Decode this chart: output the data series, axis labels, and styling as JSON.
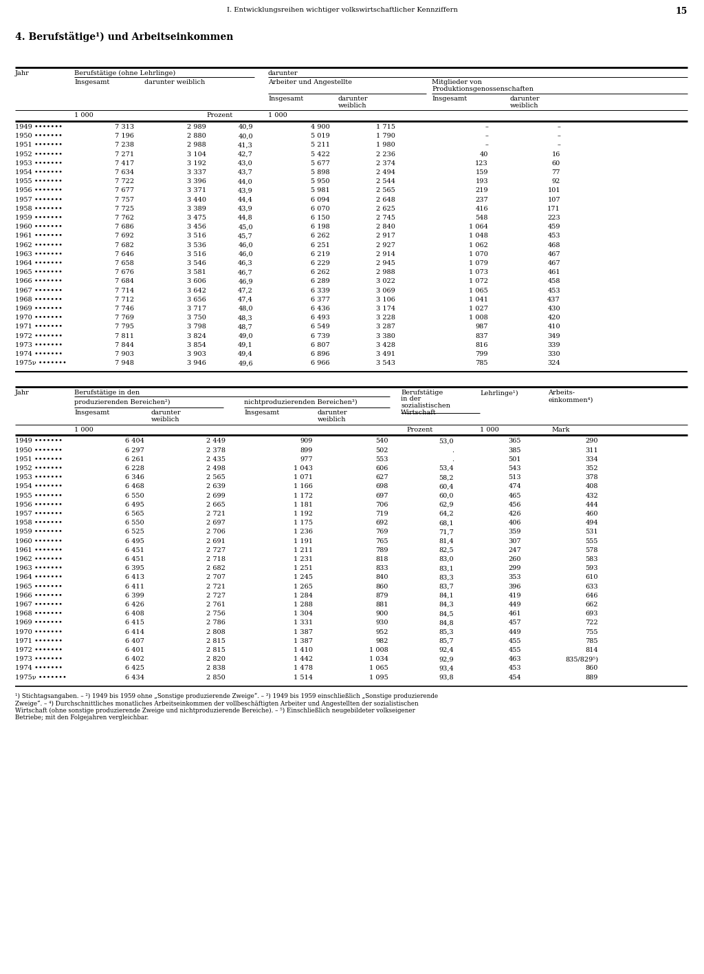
{
  "page_header": "I. Entwicklungsreihen wichtiger volkswirtschaftlicher Kennziffern",
  "page_number": "15",
  "section_title": "4. Berufstätige¹) und Arbeitseinkommen",
  "table1_data": [
    [
      "1949",
      "7 313",
      "2 989",
      "40,9",
      "4 900",
      "1 715",
      "–",
      "–"
    ],
    [
      "1950",
      "7 196",
      "2 880",
      "40,0",
      "5 019",
      "1 790",
      "–",
      "–"
    ],
    [
      "1951",
      "7 238",
      "2 988",
      "41,3",
      "5 211",
      "1 980",
      "–",
      "–"
    ],
    [
      "1952",
      "7 271",
      "3 104",
      "42,7",
      "5 422",
      "2 236",
      "40",
      "16"
    ],
    [
      "1953",
      "7 417",
      "3 192",
      "43,0",
      "5 677",
      "2 374",
      "123",
      "60"
    ],
    [
      "1954",
      "7 634",
      "3 337",
      "43,7",
      "5 898",
      "2 494",
      "159",
      "77"
    ],
    [
      "1955",
      "7 722",
      "3 396",
      "44,0",
      "5 950",
      "2 544",
      "193",
      "92"
    ],
    [
      "1956",
      "7 677",
      "3 371",
      "43,9",
      "5 981",
      "2 565",
      "219",
      "101"
    ],
    [
      "1957",
      "7 757",
      "3 440",
      "44,4",
      "6 094",
      "2 648",
      "237",
      "107"
    ],
    [
      "1958",
      "7 725",
      "3 389",
      "43,9",
      "6 070",
      "2 625",
      "416",
      "171"
    ],
    [
      "1959",
      "7 762",
      "3 475",
      "44,8",
      "6 150",
      "2 745",
      "548",
      "223"
    ],
    [
      "1960",
      "7 686",
      "3 456",
      "45,0",
      "6 198",
      "2 840",
      "1 064",
      "459"
    ],
    [
      "1961",
      "7 692",
      "3 516",
      "45,7",
      "6 262",
      "2 917",
      "1 048",
      "453"
    ],
    [
      "1962",
      "7 682",
      "3 536",
      "46,0",
      "6 251",
      "2 927",
      "1 062",
      "468"
    ],
    [
      "1963",
      "7 646",
      "3 516",
      "46,0",
      "6 219",
      "2 914",
      "1 070",
      "467"
    ],
    [
      "1964",
      "7 658",
      "3 546",
      "46,3",
      "6 229",
      "2 945",
      "1 079",
      "467"
    ],
    [
      "1965",
      "7 676",
      "3 581",
      "46,7",
      "6 262",
      "2 988",
      "1 073",
      "461"
    ],
    [
      "1966",
      "7 684",
      "3 606",
      "46,9",
      "6 289",
      "3 022",
      "1 072",
      "458"
    ],
    [
      "1967",
      "7 714",
      "3 642",
      "47,2",
      "6 339",
      "3 069",
      "1 065",
      "453"
    ],
    [
      "1968",
      "7 712",
      "3 656",
      "47,4",
      "6 377",
      "3 106",
      "1 041",
      "437"
    ],
    [
      "1969",
      "7 746",
      "3 717",
      "48,0",
      "6 436",
      "3 174",
      "1 027",
      "430"
    ],
    [
      "1970",
      "7 769",
      "3 750",
      "48,3",
      "6 493",
      "3 228",
      "1 008",
      "420"
    ],
    [
      "1971",
      "7 795",
      "3 798",
      "48,7",
      "6 549",
      "3 287",
      "987",
      "410"
    ],
    [
      "1972",
      "7 811",
      "3 824",
      "49,0",
      "6 739",
      "3 380",
      "837",
      "349"
    ],
    [
      "1973",
      "7 844",
      "3 854",
      "49,1",
      "6 807",
      "3 428",
      "816",
      "339"
    ],
    [
      "1974",
      "7 903",
      "3 903",
      "49,4",
      "6 896",
      "3 491",
      "799",
      "330"
    ],
    [
      "1975ν",
      "7 948",
      "3 946",
      "49,6",
      "6 966",
      "3 543",
      "785",
      "324"
    ]
  ],
  "table2_data": [
    [
      "1949",
      "6 404",
      "2 449",
      "909",
      "540",
      "53,0",
      "365",
      "290"
    ],
    [
      "1950",
      "6 297",
      "2 378",
      "899",
      "502",
      ".",
      "385",
      "311"
    ],
    [
      "1951",
      "6 261",
      "2 435",
      "977",
      "553",
      ".",
      "501",
      "334"
    ],
    [
      "1952",
      "6 228",
      "2 498",
      "1 043",
      "606",
      "53,4",
      "543",
      "352"
    ],
    [
      "1953",
      "6 346",
      "2 565",
      "1 071",
      "627",
      "58,2",
      "513",
      "378"
    ],
    [
      "1954",
      "6 468",
      "2 639",
      "1 166",
      "698",
      "60,4",
      "474",
      "408"
    ],
    [
      "1955",
      "6 550",
      "2 699",
      "1 172",
      "697",
      "60,0",
      "465",
      "432"
    ],
    [
      "1956",
      "6 495",
      "2 665",
      "1 181",
      "706",
      "62,9",
      "456",
      "444"
    ],
    [
      "1957",
      "6 565",
      "2 721",
      "1 192",
      "719",
      "64,2",
      "426",
      "460"
    ],
    [
      "1958",
      "6 550",
      "2 697",
      "1 175",
      "692",
      "68,1",
      "406",
      "494"
    ],
    [
      "1959",
      "6 525",
      "2 706",
      "1 236",
      "769",
      "71,7",
      "359",
      "531"
    ],
    [
      "1960",
      "6 495",
      "2 691",
      "1 191",
      "765",
      "81,4",
      "307",
      "555"
    ],
    [
      "1961",
      "6 451",
      "2 727",
      "1 211",
      "789",
      "82,5",
      "247",
      "578"
    ],
    [
      "1962",
      "6 451",
      "2 718",
      "1 231",
      "818",
      "83,0",
      "260",
      "583"
    ],
    [
      "1963",
      "6 395",
      "2 682",
      "1 251",
      "833",
      "83,1",
      "299",
      "593"
    ],
    [
      "1964",
      "6 413",
      "2 707",
      "1 245",
      "840",
      "83,3",
      "353",
      "610"
    ],
    [
      "1965",
      "6 411",
      "2 721",
      "1 265",
      "860",
      "83,7",
      "396",
      "633"
    ],
    [
      "1966",
      "6 399",
      "2 727",
      "1 284",
      "879",
      "84,1",
      "419",
      "646"
    ],
    [
      "1967",
      "6 426",
      "2 761",
      "1 288",
      "881",
      "84,3",
      "449",
      "662"
    ],
    [
      "1968",
      "6 408",
      "2 756",
      "1 304",
      "900",
      "84,5",
      "461",
      "693"
    ],
    [
      "1969",
      "6 415",
      "2 786",
      "1 331",
      "930",
      "84,8",
      "457",
      "722"
    ],
    [
      "1970",
      "6 414",
      "2 808",
      "1 387",
      "952",
      "85,3",
      "449",
      "755"
    ],
    [
      "1971",
      "6 407",
      "2 815",
      "1 387",
      "982",
      "85,7",
      "455",
      "785"
    ],
    [
      "1972",
      "6 401",
      "2 815",
      "1 410",
      "1 008",
      "92,4",
      "455",
      "814"
    ],
    [
      "1973",
      "6 402",
      "2 820",
      "1 442",
      "1 034",
      "92,9",
      "463",
      "835/829⁵)"
    ],
    [
      "1974",
      "6 425",
      "2 838",
      "1 478",
      "1 065",
      "93,4",
      "453",
      "860"
    ],
    [
      "1975ν",
      "6 434",
      "2 850",
      "1 514",
      "1 095",
      "93,8",
      "454",
      "889"
    ]
  ],
  "footnotes": [
    "¹) Stichtagsangaben. – ²) 1949 bis 1959 ohne „Sonstige produzierende Zweige“. – ³) 1949 bis 1959 einschließlich „Sonstige produzierende",
    "Zweige“. – ⁴) Durchschnittliches monatliches Arbeitseinkommen der vollbeschäftigten Arbeiter und Angestellten der sozialistischen",
    "Wirtschaft (ohne sonstige produzierende Zweige und nichtproduzierende Bereiche). – ⁵) Einschließlich neugebildeter volkseigener",
    "Betriebe; mit den Folgejahren vergleichbar."
  ]
}
